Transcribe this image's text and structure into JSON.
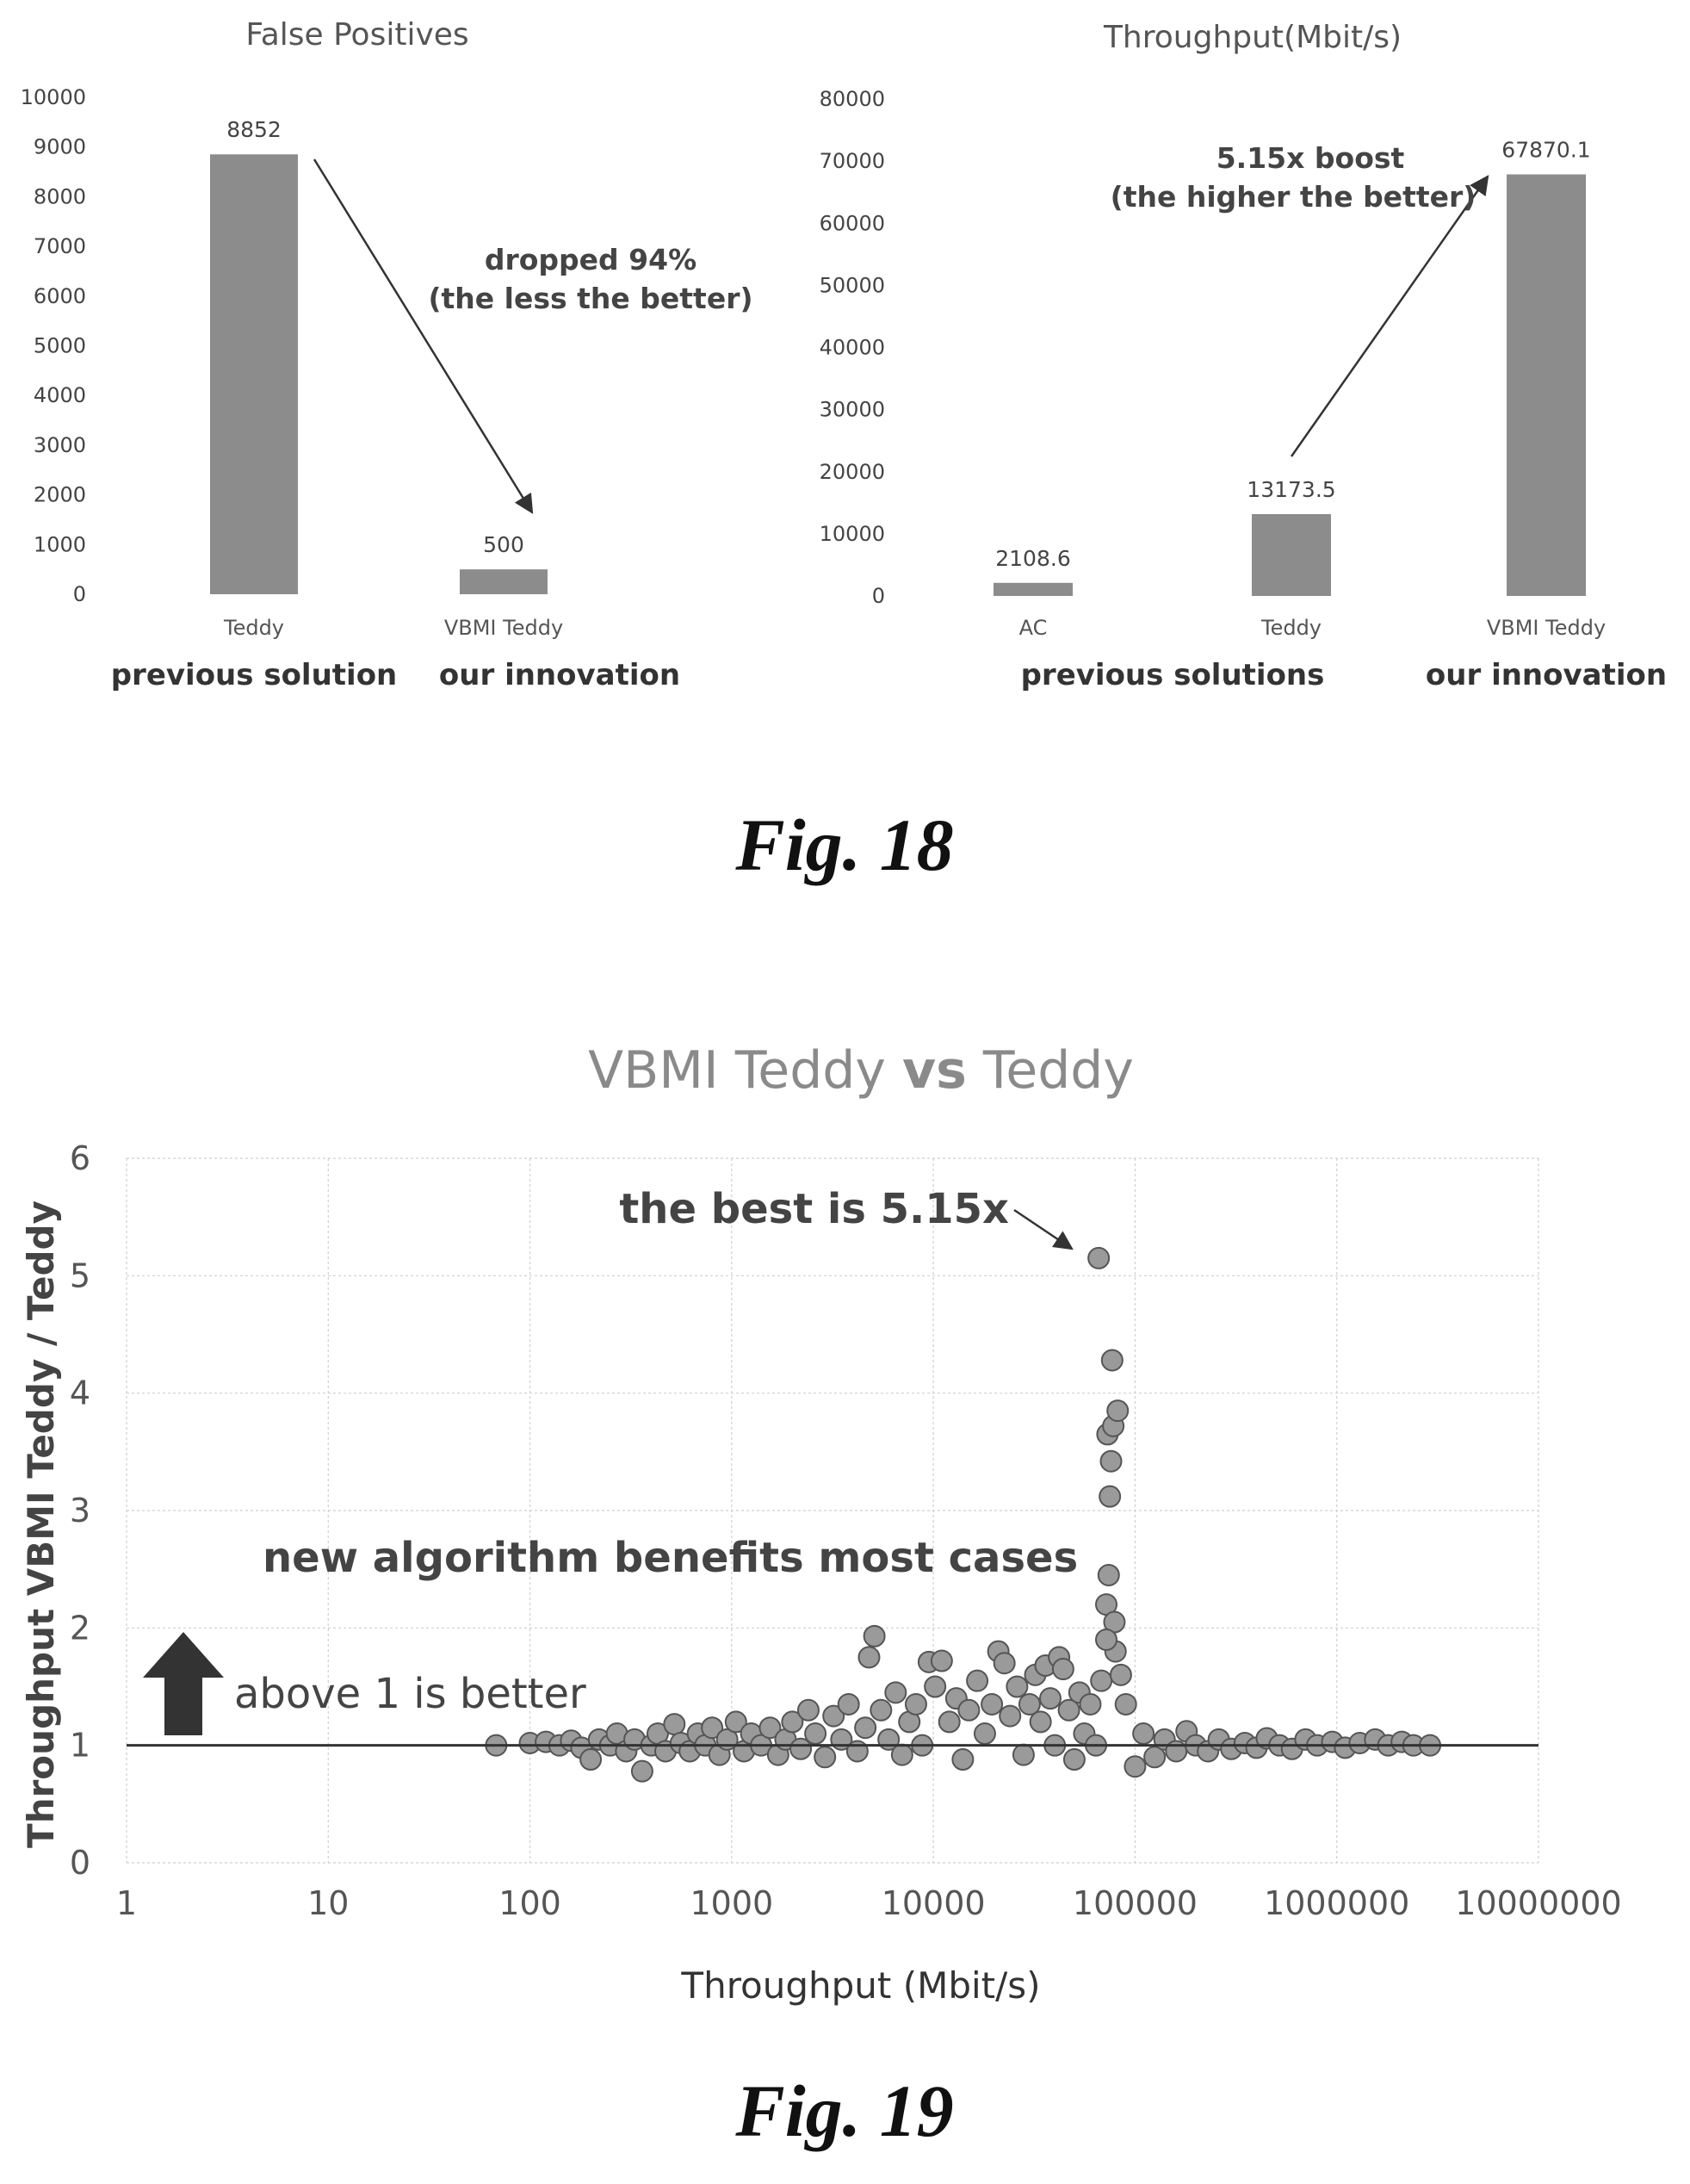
{
  "chart_data": [
    {
      "type": "bar",
      "title": "False Positives",
      "categories": [
        "Teddy",
        "VBMI Teddy"
      ],
      "values": [
        8852,
        500
      ],
      "data_labels": [
        "8852",
        "500"
      ],
      "ylim": [
        0,
        10000
      ],
      "yticks": [
        "0",
        "1000",
        "2000",
        "3000",
        "4000",
        "5000",
        "6000",
        "7000",
        "8000",
        "9000",
        "10000"
      ],
      "groups": [
        "previous solution",
        "our innovation"
      ],
      "annotation": [
        "dropped 94%",
        "(the less the better)"
      ],
      "bar_color": "#8c8c8c",
      "grid": false
    },
    {
      "type": "bar",
      "title": "Throughput(Mbit/s)",
      "categories": [
        "AC",
        "Teddy",
        "VBMI Teddy"
      ],
      "values": [
        2108.6,
        13173.5,
        67870.1
      ],
      "data_labels": [
        "2108.6",
        "13173.5",
        "67870.1"
      ],
      "ylim": [
        0,
        80000
      ],
      "yticks": [
        "0",
        "10000",
        "20000",
        "30000",
        "40000",
        "50000",
        "60000",
        "70000",
        "80000"
      ],
      "groups": [
        "previous solutions",
        "our innovation"
      ],
      "annotation": [
        "5.15x boost",
        "(the higher the better)"
      ],
      "bar_color": "#8c8c8c",
      "grid": false
    },
    {
      "type": "scatter",
      "title_parts": [
        "VBMI Teddy ",
        "vs",
        " Teddy"
      ],
      "xlabel": "Throughput (Mbit/s)",
      "ylabel": "Throughput VBMI Teddy / Teddy",
      "x_scale": "log",
      "xlim": [
        1,
        10000000
      ],
      "ylim": [
        0,
        6
      ],
      "xticks": [
        "1",
        "10",
        "100",
        "1000",
        "10000",
        "100000",
        "1000000",
        "10000000"
      ],
      "yticks": [
        "0",
        "1",
        "2",
        "3",
        "4",
        "5",
        "6"
      ],
      "grid": true,
      "reference_line_y": 1,
      "marker_color": "#9a9a9a",
      "annotations": {
        "best": "the best is 5.15x",
        "benefit": "new algorithm benefits most cases",
        "above": "above 1 is better"
      },
      "points": [
        [
          68,
          1.0
        ],
        [
          100,
          1.02
        ],
        [
          120,
          1.03
        ],
        [
          140,
          1.0
        ],
        [
          160,
          1.04
        ],
        [
          180,
          0.98
        ],
        [
          200,
          0.88
        ],
        [
          220,
          1.05
        ],
        [
          250,
          1.0
        ],
        [
          270,
          1.1
        ],
        [
          300,
          0.95
        ],
        [
          330,
          1.05
        ],
        [
          360,
          0.78
        ],
        [
          400,
          1.0
        ],
        [
          430,
          1.1
        ],
        [
          470,
          0.95
        ],
        [
          520,
          1.18
        ],
        [
          560,
          1.02
        ],
        [
          620,
          0.95
        ],
        [
          680,
          1.1
        ],
        [
          740,
          1.0
        ],
        [
          800,
          1.15
        ],
        [
          870,
          0.92
        ],
        [
          950,
          1.05
        ],
        [
          1050,
          1.2
        ],
        [
          1150,
          0.95
        ],
        [
          1250,
          1.1
        ],
        [
          1400,
          1.0
        ],
        [
          1550,
          1.15
        ],
        [
          1700,
          0.92
        ],
        [
          1850,
          1.05
        ],
        [
          2000,
          1.2
        ],
        [
          2200,
          0.97
        ],
        [
          2400,
          1.3
        ],
        [
          2600,
          1.1
        ],
        [
          2900,
          0.9
        ],
        [
          3200,
          1.25
        ],
        [
          3500,
          1.05
        ],
        [
          3800,
          1.35
        ],
        [
          4200,
          0.95
        ],
        [
          4600,
          1.15
        ],
        [
          4800,
          1.75
        ],
        [
          5100,
          1.93
        ],
        [
          5500,
          1.3
        ],
        [
          6000,
          1.05
        ],
        [
          6500,
          1.45
        ],
        [
          7000,
          0.92
        ],
        [
          7600,
          1.2
        ],
        [
          8200,
          1.35
        ],
        [
          8800,
          1.0
        ],
        [
          9500,
          1.71
        ],
        [
          10200,
          1.5
        ],
        [
          11000,
          1.72
        ],
        [
          12000,
          1.2
        ],
        [
          13000,
          1.4
        ],
        [
          14000,
          0.88
        ],
        [
          15000,
          1.3
        ],
        [
          16500,
          1.55
        ],
        [
          18000,
          1.1
        ],
        [
          19500,
          1.35
        ],
        [
          21000,
          1.8
        ],
        [
          22500,
          1.7
        ],
        [
          24000,
          1.25
        ],
        [
          26000,
          1.5
        ],
        [
          28000,
          0.92
        ],
        [
          30000,
          1.35
        ],
        [
          32000,
          1.6
        ],
        [
          34000,
          1.2
        ],
        [
          36000,
          1.68
        ],
        [
          38000,
          1.4
        ],
        [
          40000,
          1.0
        ],
        [
          42000,
          1.75
        ],
        [
          44000,
          1.65
        ],
        [
          47000,
          1.3
        ],
        [
          50000,
          0.88
        ],
        [
          53000,
          1.45
        ],
        [
          56000,
          1.1
        ],
        [
          60000,
          1.35
        ],
        [
          64000,
          1.0
        ],
        [
          68000,
          1.55
        ],
        [
          66000,
          5.15
        ],
        [
          72000,
          2.2
        ],
        [
          74000,
          2.45
        ],
        [
          75000,
          3.12
        ],
        [
          76000,
          3.42
        ],
        [
          73000,
          3.65
        ],
        [
          78000,
          3.72
        ],
        [
          82000,
          3.85
        ],
        [
          77000,
          4.28
        ],
        [
          79000,
          2.05
        ],
        [
          80000,
          1.8
        ],
        [
          72000,
          1.9
        ],
        [
          85000,
          1.6
        ],
        [
          90000,
          1.35
        ],
        [
          100000,
          0.82
        ],
        [
          110000,
          1.1
        ],
        [
          125000,
          0.9
        ],
        [
          140000,
          1.05
        ],
        [
          160000,
          0.95
        ],
        [
          180000,
          1.12
        ],
        [
          200000,
          1.0
        ],
        [
          230000,
          0.95
        ],
        [
          260000,
          1.05
        ],
        [
          300000,
          0.97
        ],
        [
          350000,
          1.02
        ],
        [
          400000,
          0.98
        ],
        [
          450000,
          1.06
        ],
        [
          520000,
          1.0
        ],
        [
          600000,
          0.97
        ],
        [
          700000,
          1.05
        ],
        [
          800000,
          1.0
        ],
        [
          950000,
          1.03
        ],
        [
          1100000,
          0.98
        ],
        [
          1300000,
          1.02
        ],
        [
          1550000,
          1.05
        ],
        [
          1800000,
          1.0
        ],
        [
          2100000,
          1.03
        ],
        [
          2400000,
          1.0
        ],
        [
          2900000,
          1.0
        ]
      ]
    }
  ],
  "figures": {
    "fig18": "Fig. 18",
    "fig19": "Fig. 19"
  }
}
